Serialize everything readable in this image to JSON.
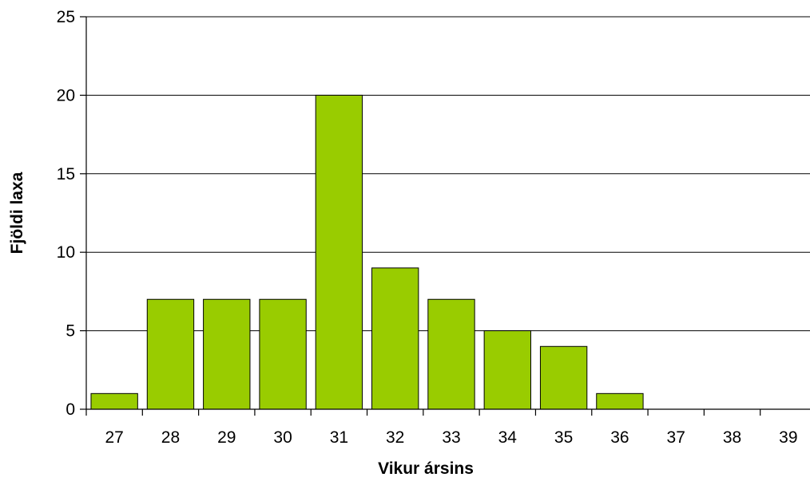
{
  "chart_data": {
    "type": "bar",
    "title": "",
    "xlabel": "Vikur ársins",
    "ylabel": "Fjöldi laxa",
    "categories": [
      "27",
      "28",
      "29",
      "30",
      "31",
      "32",
      "33",
      "34",
      "35",
      "36",
      "37",
      "38",
      "39"
    ],
    "values": [
      1,
      7,
      7,
      7,
      20,
      9,
      7,
      5,
      4,
      1,
      0,
      0,
      0
    ],
    "ylim": [
      0,
      25
    ],
    "yticks": [
      0,
      5,
      10,
      15,
      20,
      25
    ],
    "grid": true,
    "legend": "none",
    "colors": {
      "bar_fill": "#99cc00",
      "bar_stroke": "#000000",
      "grid": "#000000",
      "axis": "#000000"
    }
  }
}
